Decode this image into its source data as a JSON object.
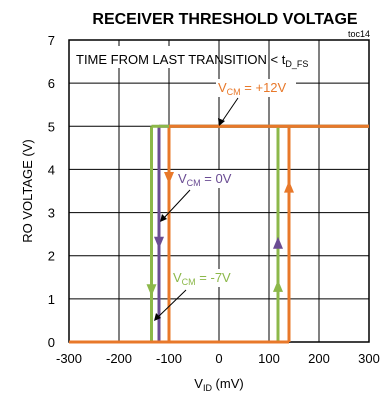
{
  "chart_data": {
    "type": "line",
    "title": "RECEIVER THRESHOLD VOLTAGE",
    "figure_id": "toc14",
    "condition": {
      "prefix": "TIME FROM LAST TRANSITION < t",
      "sub": "D_FS"
    },
    "xlabel": {
      "main": "V",
      "sub": "ID",
      "suffix": " (mV)"
    },
    "ylabel": "RO VOLTAGE (V)",
    "xlim": [
      -300,
      300
    ],
    "ylim": [
      0,
      7
    ],
    "xticks": [
      -300,
      -200,
      -100,
      0,
      100,
      200,
      300
    ],
    "yticks": [
      0,
      1,
      2,
      3,
      4,
      5,
      6,
      7
    ],
    "grid": true,
    "series": [
      {
        "name": "VCM = +12V",
        "label_main": "V",
        "label_sub": "CM",
        "label_value": " = +12V",
        "color": "#e8782a",
        "down": {
          "x": [
            -100,
            -100
          ],
          "y": [
            5,
            0
          ]
        },
        "up": {
          "x": [
            140,
            140
          ],
          "y": [
            0,
            5
          ]
        },
        "low_x": [
          -300,
          140
        ],
        "high_x": [
          -100,
          300
        ]
      },
      {
        "name": "VCM = 0V",
        "label_main": "V",
        "label_sub": "CM",
        "label_value": " = 0V",
        "color": "#6a4c93",
        "down": {
          "x": [
            -120,
            -120
          ],
          "y": [
            5,
            0
          ]
        },
        "up": {
          "x": [
            118,
            118
          ],
          "y": [
            0,
            5
          ]
        },
        "low_x": [
          -300,
          118
        ],
        "high_x": [
          -120,
          300
        ]
      },
      {
        "name": "VCM = -7V",
        "label_main": "V",
        "label_sub": "CM",
        "label_value": " = -7V",
        "color": "#8cb84a",
        "down": {
          "x": [
            -135,
            -135
          ],
          "y": [
            5,
            0
          ]
        },
        "up": {
          "x": [
            118,
            118
          ],
          "y": [
            0,
            5
          ]
        },
        "low_x": [
          -300,
          118
        ],
        "high_x": [
          -135,
          300
        ]
      }
    ]
  }
}
